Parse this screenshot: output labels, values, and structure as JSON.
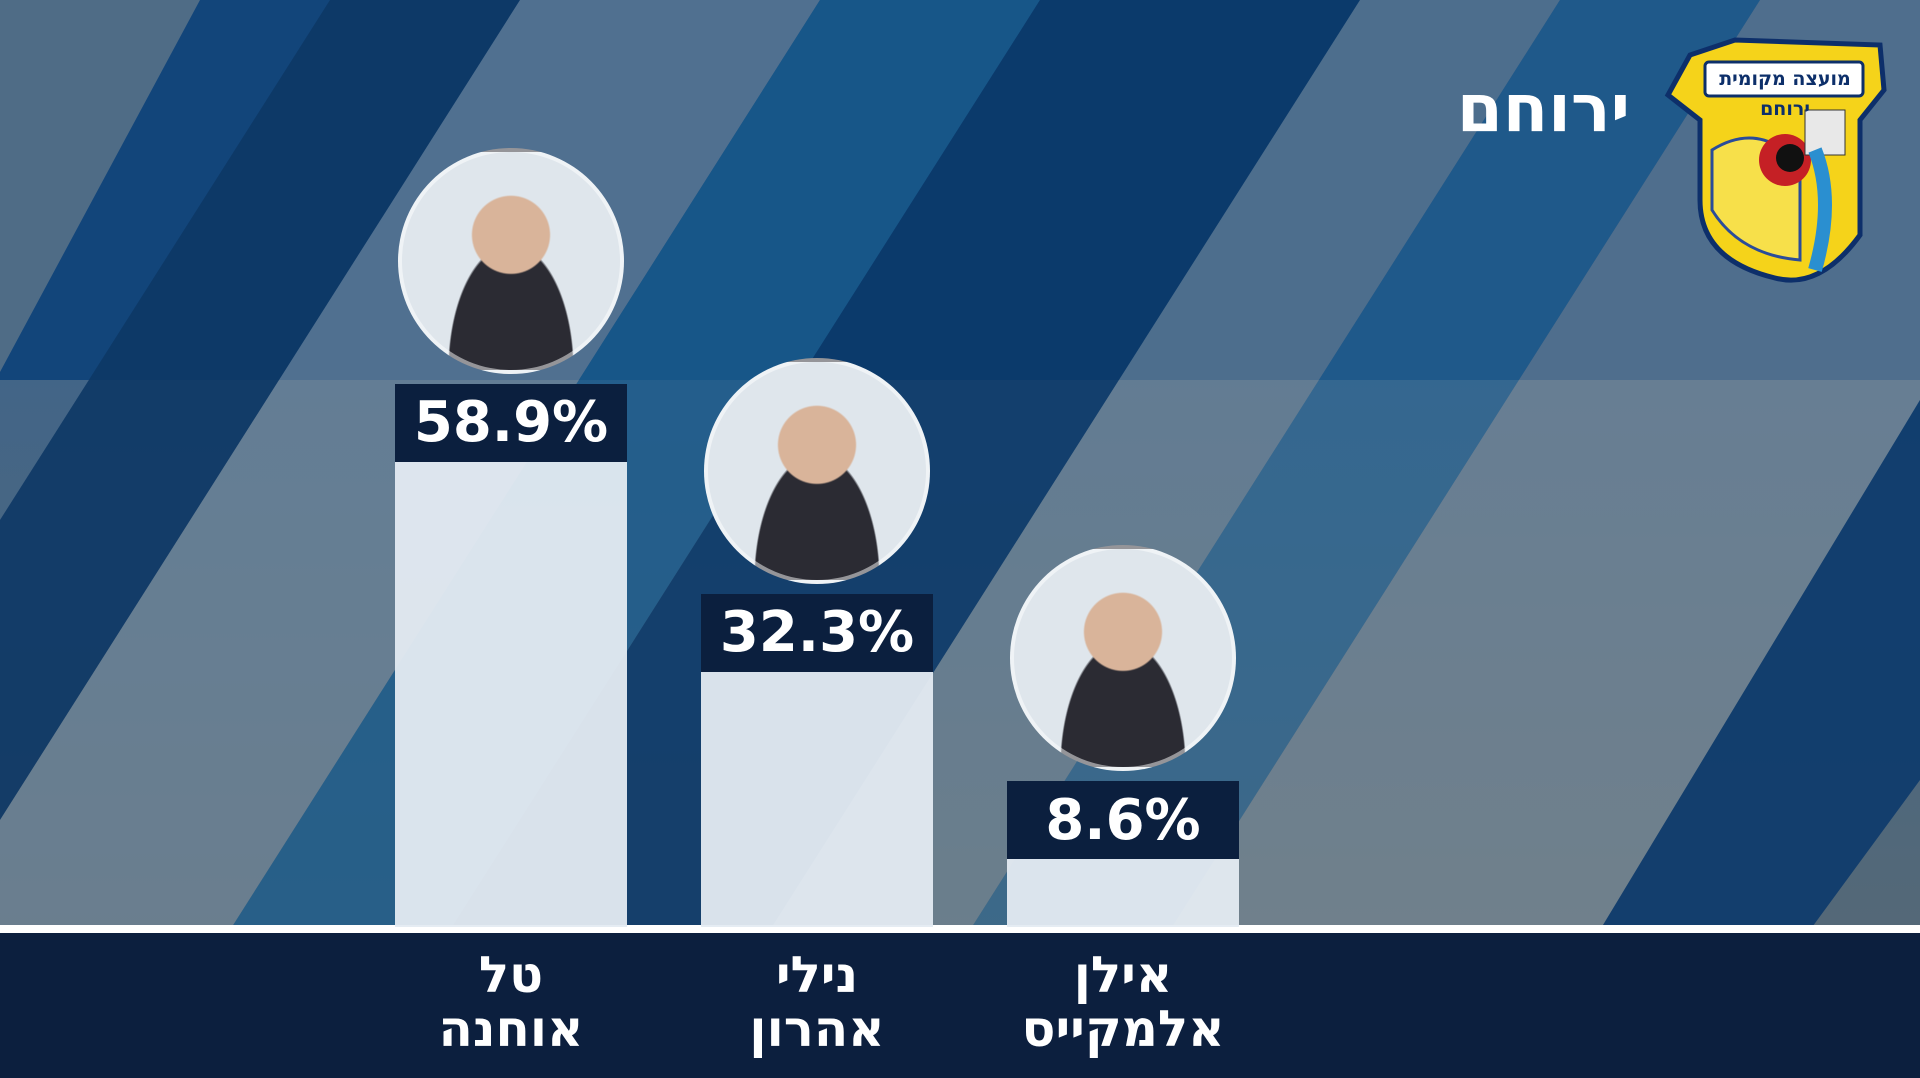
{
  "chart_data": {
    "type": "bar",
    "title": "ירוחם",
    "logo_text": "מועצה מקומית ירוחם",
    "categories": [
      "טל אוחנה",
      "נילי אהרון",
      "אילן אלמקייס"
    ],
    "values": [
      58.9,
      32.3,
      8.6
    ],
    "value_labels": [
      "58.9%",
      "32.3%",
      "8.6%"
    ],
    "color": "#e4ebf2"
  }
}
